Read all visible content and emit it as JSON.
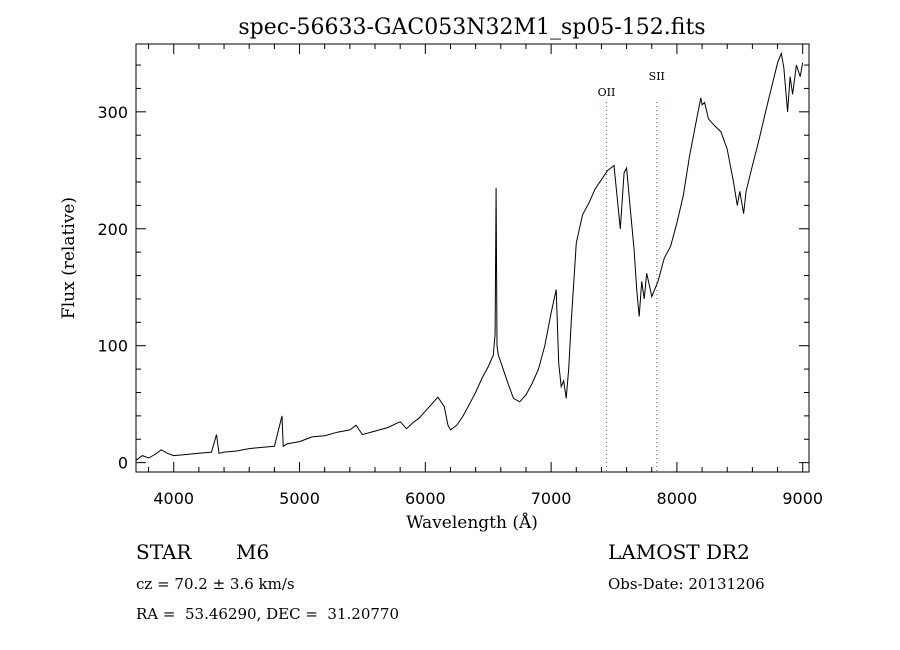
{
  "chart_data": {
    "type": "line",
    "title": "spec-56633-GAC053N32M1_sp05-152.fits",
    "xlabel": "Wavelength (Å)",
    "ylabel": "Flux (relative)",
    "xlim": [
      3700,
      9050
    ],
    "ylim": [
      -8,
      358
    ],
    "xticks": [
      4000,
      5000,
      6000,
      7000,
      8000,
      9000
    ],
    "yticks": [
      0,
      100,
      200,
      300
    ],
    "grid": false,
    "line_color": "#000000",
    "marker_color": "#cc3333",
    "markers": [
      {
        "label": "OII",
        "x": 7440
      },
      {
        "label": "SII",
        "x": 7840
      }
    ],
    "series": [
      {
        "x": [
          3700,
          3750,
          3800,
          3850,
          3900,
          3950,
          4000,
          4100,
          4200,
          4300,
          4340,
          4360,
          4400,
          4500,
          4600,
          4700,
          4800,
          4861,
          4870,
          4900,
          5000,
          5100,
          5200,
          5300,
          5400,
          5450,
          5500,
          5600,
          5700,
          5800,
          5850,
          5900,
          5950,
          6000,
          6050,
          6100,
          6150,
          6180,
          6200,
          6250,
          6300,
          6350,
          6400,
          6450,
          6500,
          6540,
          6555,
          6563,
          6570,
          6580,
          6600,
          6650,
          6700,
          6750,
          6800,
          6850,
          6900,
          6950,
          7000,
          7040,
          7060,
          7080,
          7100,
          7120,
          7140,
          7160,
          7200,
          7250,
          7300,
          7350,
          7400,
          7450,
          7500,
          7550,
          7580,
          7600,
          7620,
          7640,
          7660,
          7680,
          7700,
          7720,
          7740,
          7760,
          7800,
          7850,
          7900,
          7950,
          8000,
          8050,
          8100,
          8150,
          8190,
          8200,
          8220,
          8250,
          8300,
          8350,
          8400,
          8450,
          8480,
          8500,
          8530,
          8550,
          8600,
          8650,
          8700,
          8750,
          8800,
          8830,
          8850,
          8880,
          8900,
          8920,
          8950,
          8980,
          9000
        ],
        "y": [
          2,
          6,
          4,
          7,
          11,
          8,
          6,
          7,
          8,
          9,
          24,
          8,
          9,
          10,
          12,
          13,
          14,
          40,
          14,
          16,
          18,
          22,
          23,
          26,
          28,
          32,
          24,
          27,
          30,
          35,
          29,
          34,
          38,
          44,
          50,
          56,
          48,
          32,
          28,
          32,
          40,
          50,
          60,
          72,
          82,
          92,
          110,
          235,
          100,
          92,
          86,
          70,
          55,
          52,
          58,
          68,
          80,
          100,
          128,
          148,
          85,
          65,
          70,
          55,
          80,
          120,
          188,
          212,
          222,
          234,
          242,
          250,
          254,
          200,
          248,
          252,
          228,
          205,
          182,
          148,
          125,
          155,
          140,
          162,
          142,
          155,
          175,
          185,
          205,
          228,
          262,
          290,
          312,
          306,
          308,
          294,
          288,
          283,
          268,
          240,
          220,
          232,
          213,
          232,
          254,
          275,
          298,
          320,
          342,
          350,
          338,
          300,
          330,
          315,
          340,
          330,
          342
        ]
      }
    ],
    "info": {
      "object_class": "STAR",
      "subclass": "M6",
      "survey": "LAMOST DR2",
      "cz": "cz = 70.2 ± 3.6 km/s",
      "obs_date": "Obs-Date: 20131206",
      "coords": "RA =  53.46290, DEC =  31.20770"
    }
  }
}
